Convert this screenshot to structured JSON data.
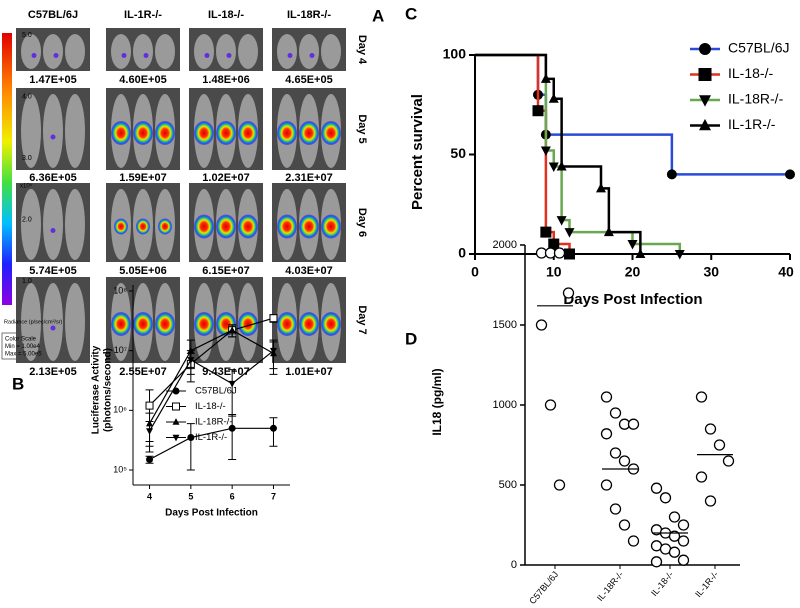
{
  "panel_a": {
    "label": "A",
    "columns": [
      "C57BL/6J",
      "IL-1R-/-",
      "IL-18-/-",
      "IL-18R-/-"
    ],
    "days": [
      "Day 4",
      "Day 5",
      "Day 6",
      "Day 7"
    ],
    "values": [
      [
        "1.47E+05",
        "4.60E+05",
        "1.48E+06",
        "4.65E+05"
      ],
      [
        "6.36E+05",
        "1.59E+07",
        "1.02E+07",
        "2.31E+07"
      ],
      [
        "5.74E+05",
        "5.05E+06",
        "6.15E+07",
        "4.03E+07"
      ],
      [
        "2.13E+05",
        "2.55E+07",
        "9.43E+07",
        "1.01E+07"
      ]
    ],
    "scale_labels": [
      "5.0",
      "4.0",
      "3.0",
      "2.0",
      "1.0"
    ],
    "scale_unit": "x10⁵",
    "radiance": "Radiance (p/sec/cm²/sr)",
    "scale_box": [
      "Color Scale",
      "Min = 1.00e4",
      "Max = 5.00e5"
    ]
  },
  "chart_data": [
    {
      "type": "line",
      "panel": "B",
      "xlabel": "Days Post Infection",
      "ylabel": [
        "Luciferase Activity",
        "(photons/second)"
      ],
      "x": [
        4,
        5,
        6,
        7
      ],
      "xlim": [
        3.6,
        7.4
      ],
      "xticks": [
        4,
        5,
        6,
        7
      ],
      "log_y": true,
      "ylim": [
        100000,
        100000000
      ],
      "yticks": [
        {
          "value": 100000,
          "label": "10⁵"
        },
        {
          "value": 1000000,
          "label": "10⁶"
        },
        {
          "value": 10000000,
          "label": "10⁷"
        },
        {
          "value": 100000000,
          "label": "10⁸"
        }
      ],
      "series": [
        {
          "name": "C57BL/6J",
          "marker": "circle",
          "color": "#000000",
          "values": [
            150000,
            350000,
            500000,
            500000
          ],
          "errors": [
            20000,
            250000,
            350000,
            250000
          ]
        },
        {
          "name": "IL-18-/-",
          "marker": "square-open",
          "color": "#000000",
          "values": [
            1200000,
            6000000,
            22000000,
            35000000
          ],
          "errors": [
            1000000,
            3000000,
            5000000,
            5000000
          ]
        },
        {
          "name": "IL-18R-/-",
          "marker": "triangle-up",
          "color": "#000000",
          "values": [
            600000,
            10000000,
            22000000,
            9000000
          ],
          "errors": [
            300000,
            5000000,
            5000000,
            5000000
          ]
        },
        {
          "name": "IL-1R-/-",
          "marker": "triangle-down",
          "color": "#000000",
          "values": [
            450000,
            7000000,
            2800000,
            10000000
          ],
          "errors": [
            200000,
            3000000,
            2000000,
            5000000
          ]
        }
      ]
    },
    {
      "type": "step",
      "panel": "C",
      "xlabel": "Days Post Infection",
      "ylabel": "Percent survival",
      "xlim": [
        0,
        40
      ],
      "xticks": [
        0,
        10,
        20,
        30,
        40
      ],
      "ylim": [
        0,
        100
      ],
      "yticks": [
        0,
        50,
        100
      ],
      "series": [
        {
          "name": "C57BL/6J",
          "marker": "circle",
          "color": "#2a4bd7",
          "x": [
            0,
            8,
            9,
            25,
            40
          ],
          "values": [
            100,
            80,
            60,
            40,
            40
          ]
        },
        {
          "name": "IL-18-/-",
          "marker": "square",
          "color": "#e0301e",
          "x": [
            0,
            8,
            9,
            10,
            12
          ],
          "values": [
            100,
            72,
            11,
            5,
            0
          ]
        },
        {
          "name": "IL-18R-/-",
          "marker": "triangle-down",
          "color": "#6aa84f",
          "x": [
            0,
            9,
            10,
            11,
            12,
            20,
            26
          ],
          "values": [
            100,
            52,
            44,
            17,
            11,
            5,
            0
          ]
        },
        {
          "name": "IL-1R-/-",
          "marker": "triangle-up",
          "color": "#000000",
          "x": [
            0,
            9,
            10,
            11,
            16,
            17,
            21
          ],
          "values": [
            100,
            88,
            78,
            44,
            33,
            11,
            0
          ]
        }
      ]
    },
    {
      "type": "dot",
      "panel": "D",
      "ylabel": "IL18 (pg/ml)",
      "categories": [
        "C57BL/6J",
        "IL-18R-/-",
        "IL-18-/-",
        "IL-1R-/-"
      ],
      "ylim": [
        0,
        2000
      ],
      "yticks": [
        0,
        500,
        1000,
        1500,
        2000
      ],
      "points": [
        [
          1950,
          1950,
          1950,
          1700,
          1500,
          1000,
          500
        ],
        [
          1050,
          950,
          880,
          880,
          820,
          700,
          650,
          600,
          500,
          350,
          250,
          150
        ],
        [
          480,
          420,
          300,
          250,
          220,
          200,
          180,
          150,
          120,
          100,
          80,
          30,
          20
        ],
        [
          1050,
          850,
          750,
          650,
          550,
          400
        ]
      ],
      "means": [
        1620,
        600,
        200,
        690
      ]
    }
  ]
}
